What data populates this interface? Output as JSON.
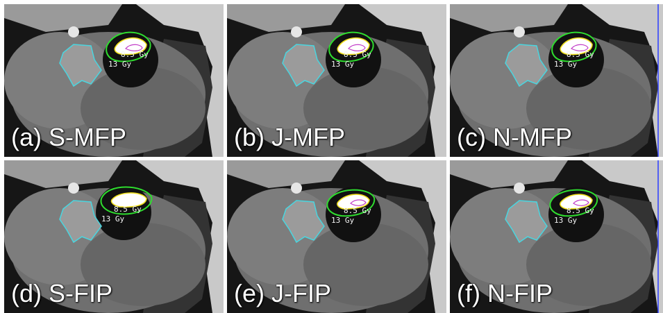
{
  "figure": {
    "panels": [
      {
        "id": "a",
        "caption": "(a) S-MFP",
        "iso_inner": "8.5 Gy",
        "iso_outer": "13 Gy"
      },
      {
        "id": "b",
        "caption": "(b) J-MFP",
        "iso_inner": "8.5 Gy",
        "iso_outer": "13 Gy"
      },
      {
        "id": "c",
        "caption": "(c) N-MFP",
        "iso_inner": "8.5 Gy",
        "iso_outer": "13 Gy"
      },
      {
        "id": "d",
        "caption": "(d) S-FIP",
        "iso_inner": "8.5 Gy",
        "iso_outer": "13 Gy"
      },
      {
        "id": "e",
        "caption": "(e) J-FIP",
        "iso_inner": "8.5 Gy",
        "iso_outer": "13 Gy"
      },
      {
        "id": "f",
        "caption": "(f) N-FIP",
        "iso_inner": "8.5 Gy",
        "iso_outer": "13 Gy"
      }
    ],
    "colors": {
      "contour_cyan": "#49d6e0",
      "contour_green": "#2fdc2f",
      "contour_yellow": "#f0e01e",
      "contour_magenta": "#c23cc8",
      "contour_blue": "#2a3cff"
    }
  }
}
